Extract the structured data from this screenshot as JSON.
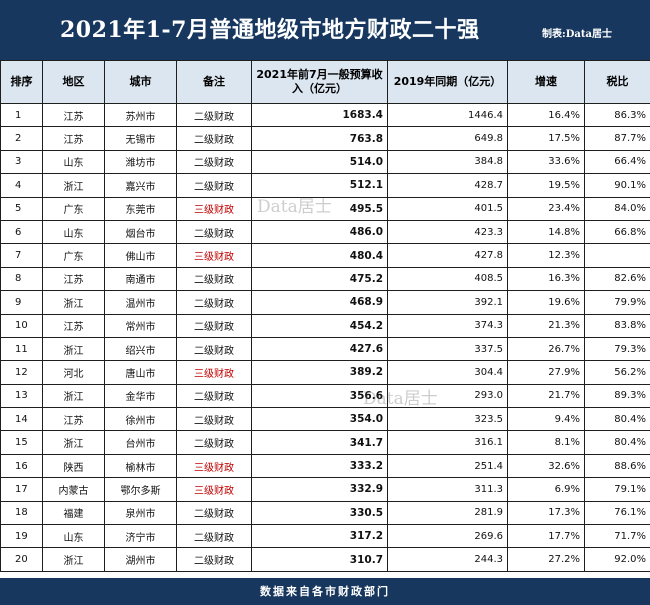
{
  "header": {
    "title": "2021年1-7月普通地级市地方财政二十强",
    "credit": "制表:Data居士"
  },
  "columns": [
    "排序",
    "地区",
    "城市",
    "备注",
    "2021年前7月一般预算收入（亿元）",
    "2019年同期（亿元）",
    "增速",
    "税比"
  ],
  "rows": [
    [
      "1",
      "江苏",
      "苏州市",
      "二级财政",
      "1683.4",
      "1446.4",
      "16.4%",
      "86.3%"
    ],
    [
      "2",
      "江苏",
      "无锡市",
      "二级财政",
      "763.8",
      "649.8",
      "17.5%",
      "87.7%"
    ],
    [
      "3",
      "山东",
      "潍坊市",
      "二级财政",
      "514.0",
      "384.8",
      "33.6%",
      "66.4%"
    ],
    [
      "4",
      "浙江",
      "嘉兴市",
      "二级财政",
      "512.1",
      "428.7",
      "19.5%",
      "90.1%"
    ],
    [
      "5",
      "广东",
      "东莞市",
      "三级财政",
      "495.5",
      "401.5",
      "23.4%",
      "84.0%"
    ],
    [
      "6",
      "山东",
      "烟台市",
      "二级财政",
      "486.0",
      "423.3",
      "14.8%",
      "66.8%"
    ],
    [
      "7",
      "广东",
      "佛山市",
      "三级财政",
      "480.4",
      "427.8",
      "12.3%",
      ""
    ],
    [
      "8",
      "江苏",
      "南通市",
      "二级财政",
      "475.2",
      "408.5",
      "16.3%",
      "82.6%"
    ],
    [
      "9",
      "浙江",
      "温州市",
      "二级财政",
      "468.9",
      "392.1",
      "19.6%",
      "79.9%"
    ],
    [
      "10",
      "江苏",
      "常州市",
      "二级财政",
      "454.2",
      "374.3",
      "21.3%",
      "83.8%"
    ],
    [
      "11",
      "浙江",
      "绍兴市",
      "二级财政",
      "427.6",
      "337.5",
      "26.7%",
      "79.3%"
    ],
    [
      "12",
      "河北",
      "唐山市",
      "三级财政",
      "389.2",
      "304.4",
      "27.9%",
      "56.2%"
    ],
    [
      "13",
      "浙江",
      "金华市",
      "二级财政",
      "356.6",
      "293.0",
      "21.7%",
      "89.3%"
    ],
    [
      "14",
      "江苏",
      "徐州市",
      "二级财政",
      "354.0",
      "323.5",
      "9.4%",
      "80.4%"
    ],
    [
      "15",
      "浙江",
      "台州市",
      "二级财政",
      "341.7",
      "316.1",
      "8.1%",
      "80.4%"
    ],
    [
      "16",
      "陕西",
      "榆林市",
      "三级财政",
      "333.2",
      "251.4",
      "32.6%",
      "88.6%"
    ],
    [
      "17",
      "内蒙古",
      "鄂尔多斯",
      "三级财政",
      "332.9",
      "311.3",
      "6.9%",
      "79.1%"
    ],
    [
      "18",
      "福建",
      "泉州市",
      "二级财政",
      "330.5",
      "281.9",
      "17.3%",
      "76.1%"
    ],
    [
      "19",
      "山东",
      "济宁市",
      "二级财政",
      "317.2",
      "269.6",
      "17.7%",
      "71.7%"
    ],
    [
      "20",
      "浙江",
      "湖州市",
      "二级财政",
      "310.7",
      "244.3",
      "27.2%",
      "92.0%"
    ]
  ],
  "footer": "数据来自各市财政部门",
  "watermark": "Data居士",
  "colors": {
    "header_bg": "#17375e",
    "column_header_bg": "#dce6f1",
    "highlight_text": "#c00000"
  }
}
